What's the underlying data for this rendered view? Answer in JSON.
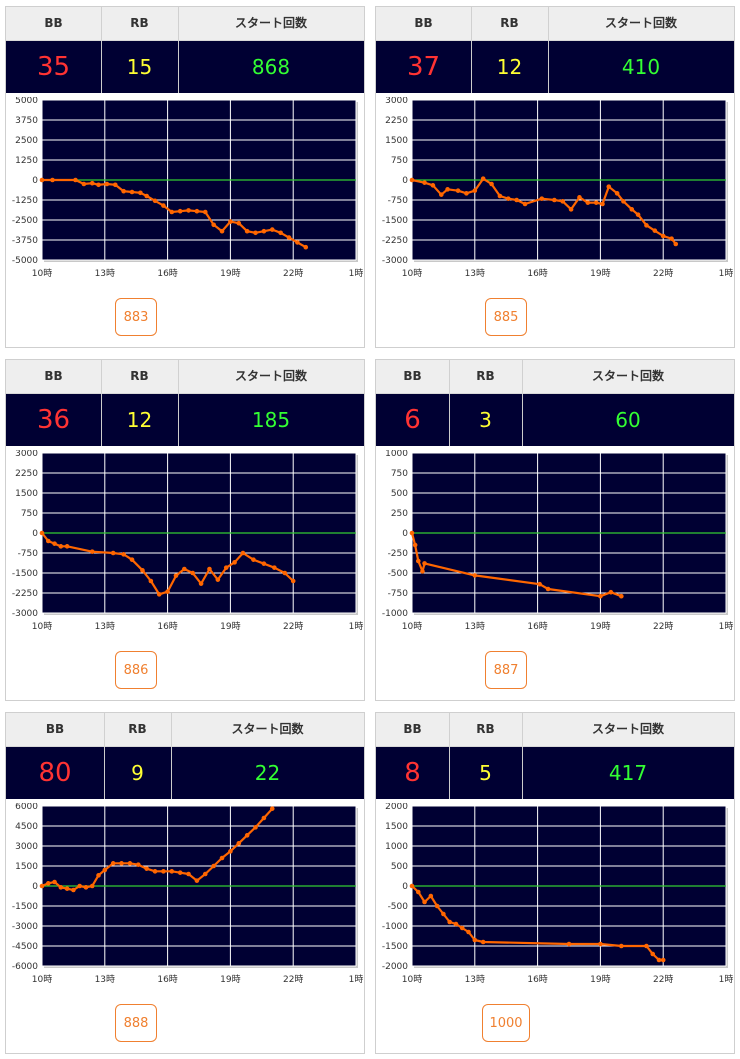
{
  "header": {
    "bb_label": "BB",
    "rb_label": "RB",
    "start_label": "スタート回数"
  },
  "colors": {
    "bb": "#ff3333",
    "rb": "#ffff33",
    "start": "#33ff33",
    "line": "#ff6600",
    "zero": "#33cc33",
    "plot_bg": "#000033",
    "button": "#f08030"
  },
  "cards": [
    {
      "bb": "35",
      "rb": "15",
      "start": "868",
      "machine": "883"
    },
    {
      "bb": "37",
      "rb": "12",
      "start": "410",
      "machine": "885"
    },
    {
      "bb": "36",
      "rb": "12",
      "start": "185",
      "machine": "886"
    },
    {
      "bb": "6",
      "rb": "3",
      "start": "60",
      "machine": "887"
    },
    {
      "bb": "80",
      "rb": "9",
      "start": "22",
      "machine": "888"
    },
    {
      "bb": "8",
      "rb": "5",
      "start": "417",
      "machine": "1000"
    }
  ],
  "chart_data": [
    {
      "type": "line",
      "xlim": [
        10,
        25
      ],
      "xticks": [
        10,
        13,
        16,
        19,
        22,
        25
      ],
      "xtick_labels": [
        "10時",
        "13時",
        "16時",
        "19時",
        "22時",
        "1時"
      ],
      "ylim": [
        -5000,
        5000
      ],
      "yticks": [
        5000,
        3750,
        2500,
        1250,
        0,
        -1250,
        -2500,
        -3750,
        -5000
      ],
      "ytick_labels": [
        "5000",
        "3750",
        "2500",
        "1250",
        "0",
        "-1250",
        "-2500",
        "-3750",
        "-5000"
      ],
      "x": [
        10.0,
        10.5,
        11.6,
        12.0,
        12.4,
        12.7,
        13.1,
        13.5,
        13.9,
        14.3,
        14.7,
        15.0,
        15.4,
        15.8,
        16.2,
        16.6,
        17.0,
        17.4,
        17.8,
        18.2,
        18.6,
        19.0,
        19.4,
        19.8,
        20.2,
        20.6,
        21.0,
        21.4,
        21.8,
        22.2,
        22.6
      ],
      "y": [
        0,
        0,
        0,
        -250,
        -200,
        -300,
        -250,
        -300,
        -700,
        -750,
        -800,
        -1000,
        -1300,
        -1600,
        -2000,
        -1950,
        -1900,
        -1950,
        -2000,
        -2800,
        -3200,
        -2600,
        -2700,
        -3200,
        -3300,
        -3200,
        -3100,
        -3300,
        -3600,
        -3900,
        -4200
      ]
    },
    {
      "type": "line",
      "xlim": [
        10,
        25
      ],
      "xticks": [
        10,
        13,
        16,
        19,
        22,
        25
      ],
      "xtick_labels": [
        "10時",
        "13時",
        "16時",
        "19時",
        "22時",
        "1時"
      ],
      "ylim": [
        -3000,
        3000
      ],
      "yticks": [
        3000,
        2250,
        1500,
        750,
        0,
        -750,
        -1500,
        -2250,
        -3000
      ],
      "ytick_labels": [
        "3000",
        "2250",
        "1500",
        "750",
        "0",
        "-750",
        "-1500",
        "-2250",
        "-3000"
      ],
      "x": [
        10.0,
        10.6,
        11.0,
        11.4,
        11.7,
        12.2,
        12.6,
        13.0,
        13.4,
        13.8,
        14.2,
        14.6,
        15.0,
        15.4,
        16.2,
        16.8,
        17.2,
        17.6,
        18.0,
        18.4,
        18.8,
        19.1,
        19.4,
        19.8,
        20.1,
        20.5,
        20.8,
        21.2,
        21.6,
        22.0,
        22.4,
        22.6
      ],
      "y": [
        0,
        -100,
        -200,
        -550,
        -350,
        -400,
        -500,
        -400,
        50,
        -150,
        -600,
        -700,
        -750,
        -900,
        -700,
        -750,
        -800,
        -1100,
        -650,
        -850,
        -850,
        -900,
        -250,
        -500,
        -800,
        -1100,
        -1300,
        -1700,
        -1900,
        -2100,
        -2200,
        -2400
      ]
    },
    {
      "type": "line",
      "xlim": [
        10,
        25
      ],
      "xticks": [
        10,
        13,
        16,
        19,
        22,
        25
      ],
      "xtick_labels": [
        "10時",
        "13時",
        "16時",
        "19時",
        "22時",
        "1時"
      ],
      "ylim": [
        -3000,
        3000
      ],
      "yticks": [
        3000,
        2250,
        1500,
        750,
        0,
        -750,
        -1500,
        -2250,
        -3000
      ],
      "ytick_labels": [
        "3000",
        "2250",
        "1500",
        "750",
        "0",
        "-750",
        "-1500",
        "-2250",
        "-3000"
      ],
      "x": [
        10.0,
        10.3,
        10.6,
        10.9,
        11.2,
        12.4,
        13.4,
        13.9,
        14.3,
        14.8,
        15.2,
        15.6,
        16.0,
        16.4,
        16.8,
        17.2,
        17.6,
        18.0,
        18.4,
        18.8,
        19.2,
        19.6,
        20.1,
        20.6,
        21.1,
        21.6,
        22.0
      ],
      "y": [
        0,
        -300,
        -400,
        -500,
        -500,
        -700,
        -750,
        -800,
        -1000,
        -1400,
        -1800,
        -2300,
        -2200,
        -1600,
        -1350,
        -1500,
        -1900,
        -1350,
        -1750,
        -1300,
        -1100,
        -750,
        -1000,
        -1150,
        -1300,
        -1500,
        -1800
      ]
    },
    {
      "type": "line",
      "xlim": [
        10,
        25
      ],
      "xticks": [
        10,
        13,
        16,
        19,
        22,
        25
      ],
      "xtick_labels": [
        "10時",
        "13時",
        "16時",
        "19時",
        "22時",
        "1時"
      ],
      "ylim": [
        -1000,
        1000
      ],
      "yticks": [
        1000,
        750,
        500,
        250,
        0,
        -250,
        -500,
        -750,
        -1000
      ],
      "ytick_labels": [
        "1000",
        "750",
        "500",
        "250",
        "0",
        "-250",
        "-500",
        "-750",
        "-1000"
      ],
      "x": [
        10.0,
        10.15,
        10.3,
        10.5,
        10.6,
        13.0,
        16.1,
        16.5,
        19.0,
        19.5,
        20.0
      ],
      "y": [
        0,
        -150,
        -350,
        -480,
        -380,
        -530,
        -640,
        -700,
        -790,
        -740,
        -790
      ]
    },
    {
      "type": "line",
      "xlim": [
        10,
        25
      ],
      "xticks": [
        10,
        13,
        16,
        19,
        22,
        25
      ],
      "xtick_labels": [
        "10時",
        "13時",
        "16時",
        "19時",
        "22時",
        "1時"
      ],
      "ylim": [
        -6000,
        6000
      ],
      "yticks": [
        6000,
        4500,
        3000,
        1500,
        0,
        -1500,
        -3000,
        -4500,
        -6000
      ],
      "ytick_labels": [
        "6000",
        "4500",
        "3000",
        "1500",
        "0",
        "-1500",
        "-3000",
        "-4500",
        "-6000"
      ],
      "x": [
        10.0,
        10.3,
        10.6,
        10.9,
        11.2,
        11.5,
        11.8,
        12.1,
        12.4,
        12.7,
        13.0,
        13.4,
        13.8,
        14.2,
        14.6,
        15.0,
        15.4,
        15.8,
        16.2,
        16.6,
        17.0,
        17.4,
        17.8,
        18.2,
        18.6,
        19.0,
        19.4,
        19.8,
        20.2,
        20.6,
        21.0
      ],
      "y": [
        0,
        200,
        300,
        -100,
        -200,
        -300,
        0,
        -100,
        0,
        800,
        1200,
        1700,
        1700,
        1700,
        1600,
        1300,
        1100,
        1100,
        1100,
        1000,
        900,
        400,
        900,
        1500,
        2100,
        2600,
        3200,
        3800,
        4400,
        5100,
        5800
      ]
    },
    {
      "type": "line",
      "xlim": [
        10,
        25
      ],
      "xticks": [
        10,
        13,
        16,
        19,
        22,
        25
      ],
      "xtick_labels": [
        "10時",
        "13時",
        "16時",
        "19時",
        "22時",
        "1時"
      ],
      "ylim": [
        -2000,
        2000
      ],
      "yticks": [
        2000,
        1500,
        1000,
        500,
        0,
        -500,
        -1000,
        -1500,
        -2000
      ],
      "ytick_labels": [
        "2000",
        "1500",
        "1000",
        "500",
        "0",
        "-500",
        "-1000",
        "-1500",
        "-2000"
      ],
      "x": [
        10.0,
        10.3,
        10.6,
        10.9,
        11.2,
        11.5,
        11.8,
        12.1,
        12.4,
        12.7,
        13.0,
        13.4,
        17.5,
        19.0,
        20.0,
        21.2,
        21.5,
        21.8,
        22.0
      ],
      "y": [
        0,
        -150,
        -400,
        -250,
        -500,
        -700,
        -900,
        -950,
        -1050,
        -1150,
        -1350,
        -1400,
        -1450,
        -1450,
        -1500,
        -1500,
        -1700,
        -1850,
        -1850
      ]
    }
  ]
}
